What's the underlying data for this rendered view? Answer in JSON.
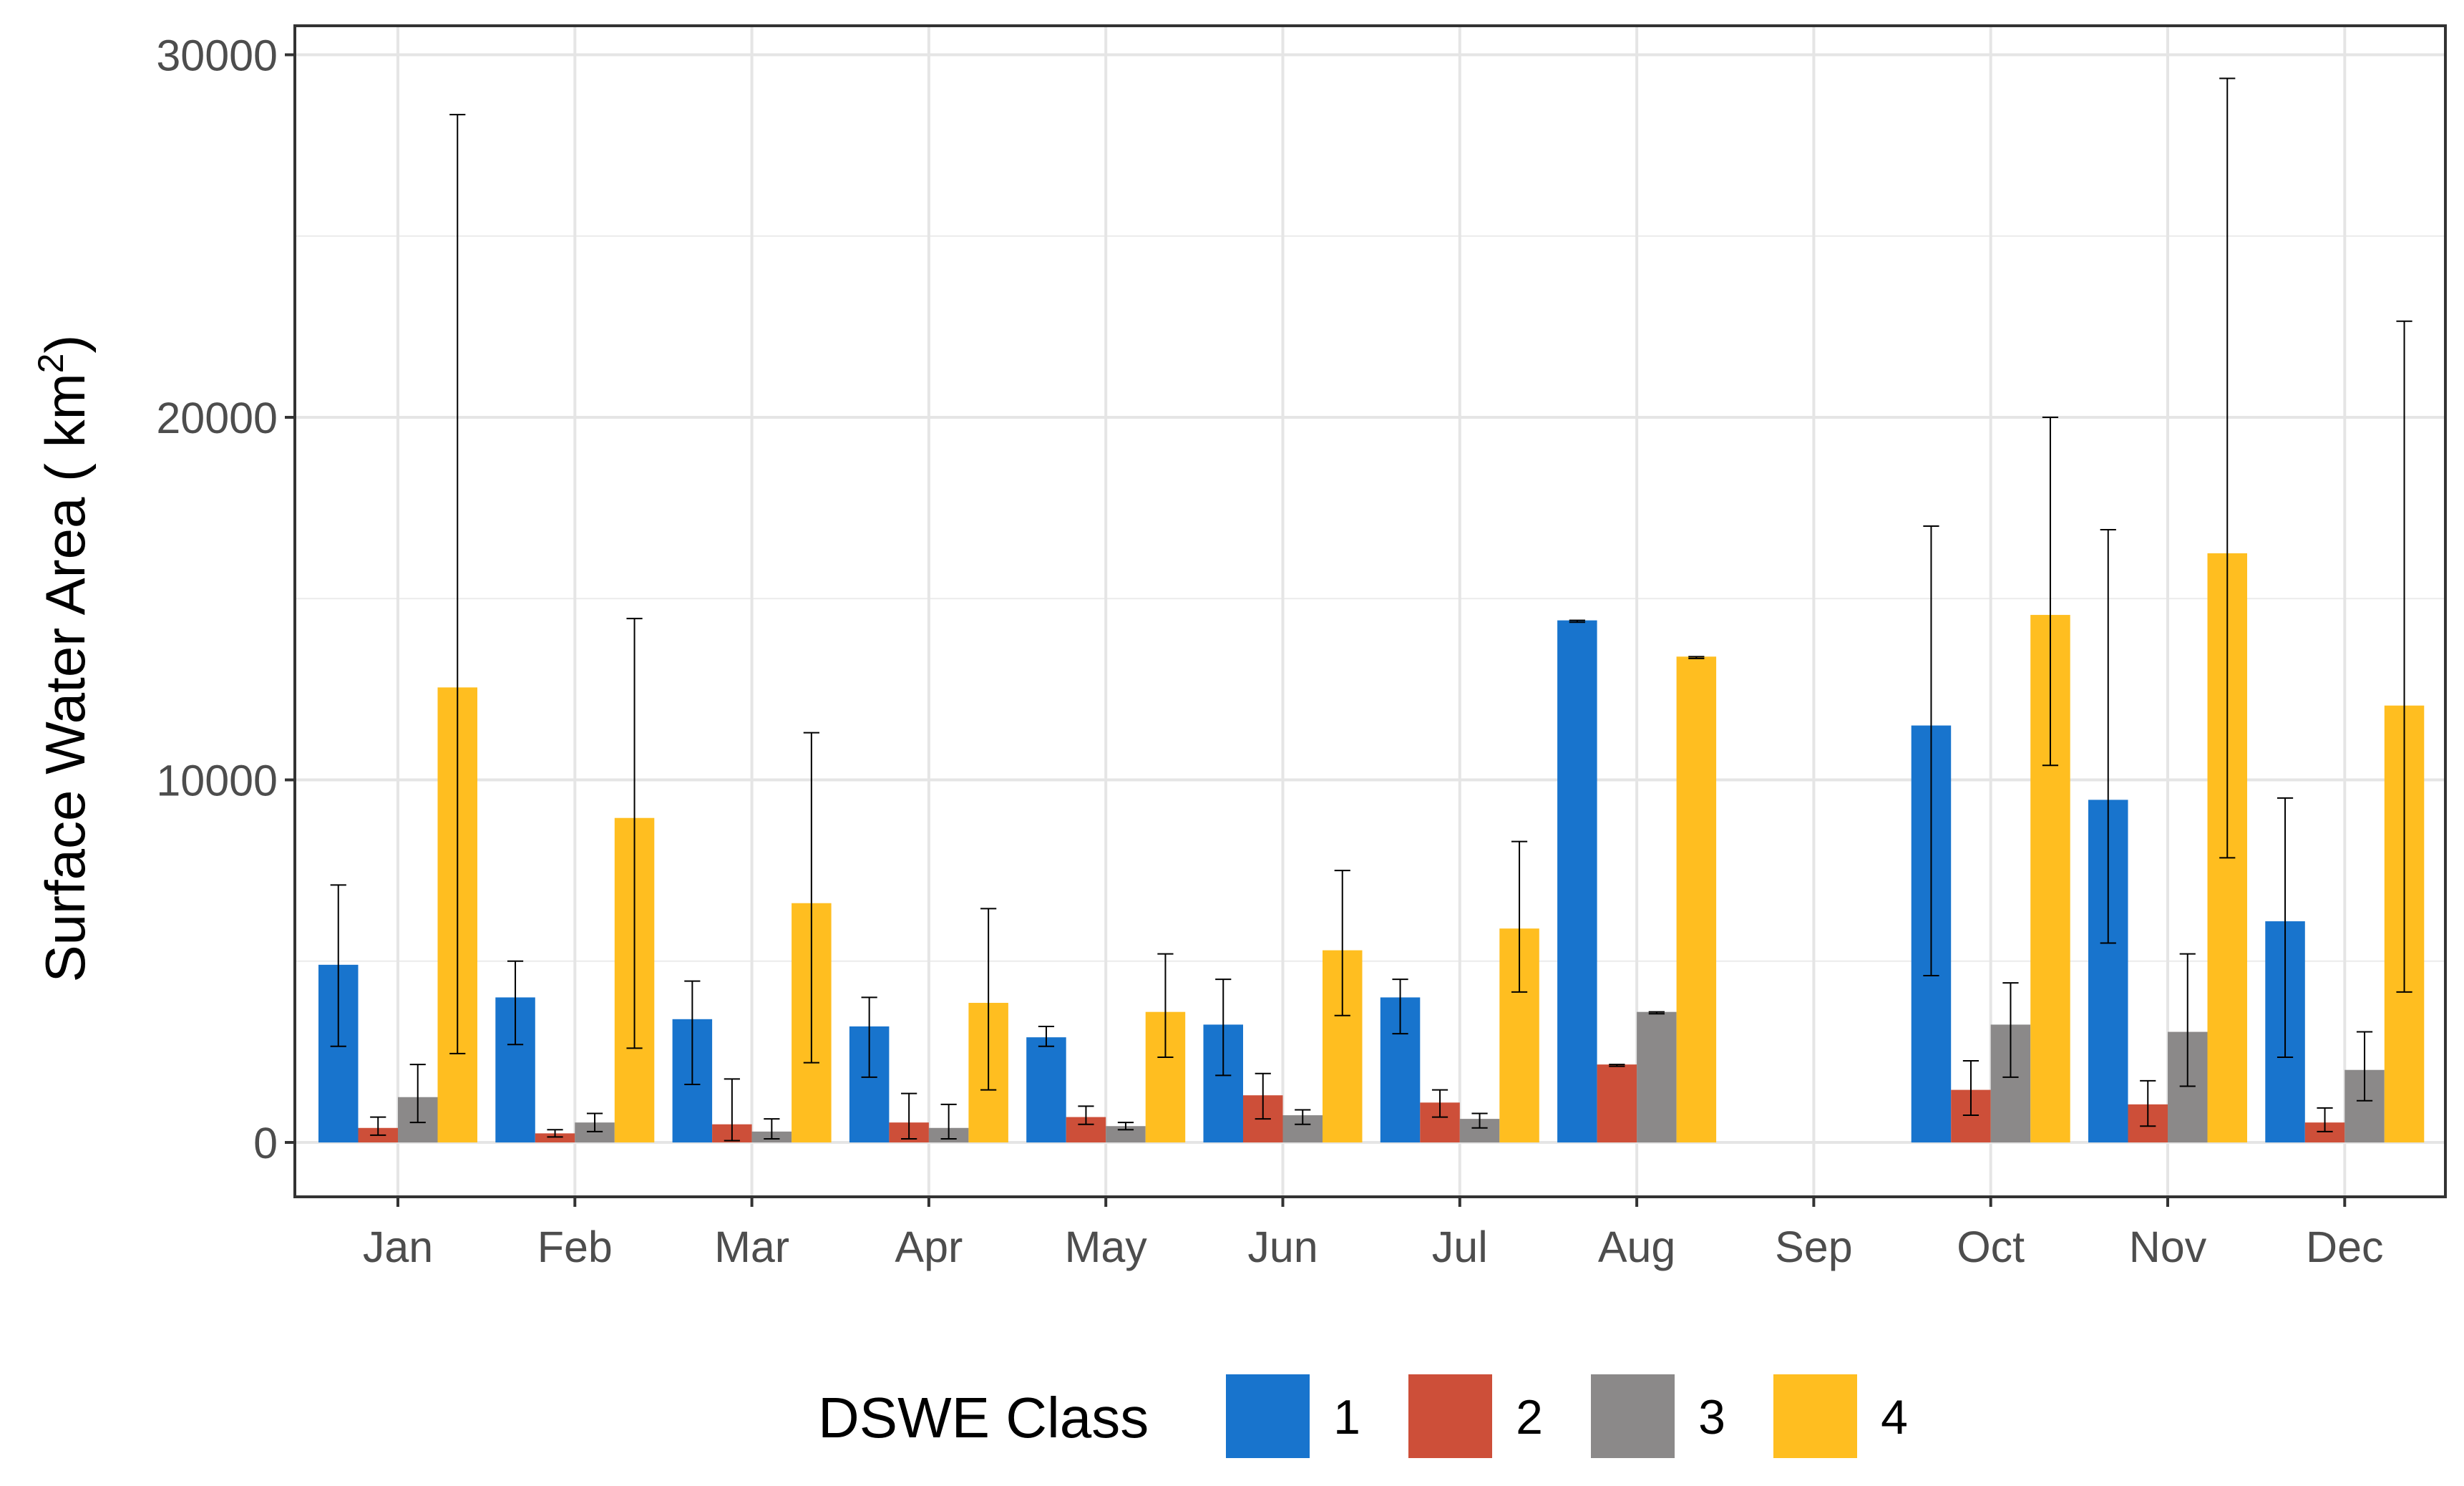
{
  "chart_data": {
    "type": "bar",
    "title": "",
    "xlabel": "",
    "ylabel": "Surface Water Area ( km",
    "ylabel_superscript": "2",
    "ylabel_close": ")",
    "ylim": [
      -1500,
      30800
    ],
    "yticks": [
      0,
      10000,
      20000,
      30000
    ],
    "ytick_labels": [
      "0",
      "10000",
      "20000",
      "30000"
    ],
    "grid": true,
    "categories": [
      "Jan",
      "Feb",
      "Mar",
      "Apr",
      "May",
      "Jun",
      "Jul",
      "Aug",
      "Sep",
      "Oct",
      "Nov",
      "Dec"
    ],
    "legend": {
      "title": "DSWE Class",
      "position": "bottom"
    },
    "series": [
      {
        "name": "1",
        "color": "#1874CD",
        "values": [
          4900,
          4000,
          3400,
          3200,
          2900,
          3250,
          4000,
          14400,
          null,
          11500,
          9450,
          6100
        ],
        "err_low": [
          2650,
          2700,
          1600,
          1800,
          2650,
          1850,
          3000,
          14350,
          null,
          4600,
          5500,
          2350
        ],
        "err_high": [
          7100,
          5000,
          4450,
          4000,
          3200,
          4500,
          4500,
          14400,
          null,
          17000,
          16900,
          9500
        ]
      },
      {
        "name": "2",
        "color": "#CD4F39",
        "values": [
          400,
          250,
          500,
          550,
          700,
          1300,
          1100,
          2150,
          null,
          1450,
          1050,
          550
        ],
        "err_low": [
          200,
          150,
          50,
          100,
          500,
          650,
          700,
          2100,
          null,
          750,
          450,
          300
        ],
        "err_high": [
          700,
          350,
          1750,
          1350,
          1000,
          1900,
          1450,
          2150,
          null,
          2250,
          1700,
          950
        ]
      },
      {
        "name": "3",
        "color": "#8B8989",
        "values": [
          1250,
          550,
          300,
          400,
          450,
          750,
          650,
          3600,
          null,
          3250,
          3050,
          2000
        ],
        "err_low": [
          550,
          300,
          100,
          100,
          350,
          500,
          400,
          3550,
          null,
          1800,
          1550,
          1150
        ],
        "err_high": [
          2150,
          800,
          650,
          1050,
          550,
          900,
          800,
          3600,
          null,
          4400,
          5200,
          3050
        ]
      },
      {
        "name": "4",
        "color": "#FFBE20",
        "values": [
          12550,
          8950,
          6600,
          3850,
          3600,
          5300,
          5900,
          13400,
          null,
          14550,
          16250,
          12050
        ],
        "err_low": [
          2450,
          2600,
          2200,
          1450,
          2350,
          3500,
          4150,
          13350,
          null,
          10400,
          7850,
          4150
        ],
        "err_high": [
          28350,
          14450,
          11300,
          6450,
          5200,
          7500,
          8300,
          13400,
          null,
          20000,
          29350,
          22650
        ]
      }
    ]
  }
}
